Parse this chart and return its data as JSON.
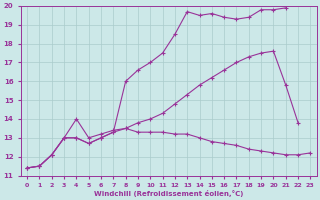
{
  "xlabel": "Windchill (Refroidissement éolien,°C)",
  "bg_color": "#cce8e8",
  "line_color": "#993399",
  "grid_color": "#aacccc",
  "xlim": [
    -0.5,
    23.5
  ],
  "ylim": [
    11,
    20
  ],
  "xticks": [
    0,
    1,
    2,
    3,
    4,
    5,
    6,
    7,
    8,
    9,
    10,
    11,
    12,
    13,
    14,
    15,
    16,
    17,
    18,
    19,
    20,
    21,
    22,
    23
  ],
  "yticks": [
    11,
    12,
    13,
    14,
    15,
    16,
    17,
    18,
    19,
    20
  ],
  "lines": [
    {
      "comment": "top line: starts low, rises sharply around x=8, stays high ~19.5-19.8",
      "x": [
        0,
        1,
        2,
        3,
        4,
        5,
        6,
        7,
        8,
        9,
        10,
        11,
        12,
        13,
        14,
        15,
        16,
        17,
        18,
        19,
        20,
        21
      ],
      "y": [
        11.4,
        11.5,
        12.1,
        13.0,
        13.0,
        12.7,
        13.0,
        13.3,
        16.0,
        16.6,
        17.0,
        17.5,
        18.5,
        19.7,
        19.5,
        19.6,
        19.4,
        19.3,
        19.4,
        19.8,
        19.8,
        19.9
      ]
    },
    {
      "comment": "bottom flat line: starts low, peaks ~14 at x=4, slowly declines to ~12.2",
      "x": [
        0,
        1,
        2,
        3,
        4,
        5,
        6,
        7,
        8,
        9,
        10,
        11,
        12,
        13,
        14,
        15,
        16,
        17,
        18,
        19,
        20,
        21,
        22,
        23
      ],
      "y": [
        11.4,
        11.5,
        12.1,
        13.0,
        14.0,
        13.0,
        13.2,
        13.4,
        13.5,
        13.3,
        13.3,
        13.3,
        13.2,
        13.2,
        13.0,
        12.8,
        12.7,
        12.6,
        12.4,
        12.3,
        12.2,
        12.1,
        12.1,
        12.2
      ]
    },
    {
      "comment": "triangle line: starts low, rises diagonally to peak ~17.6 at x=20, drops to ~13.8 at x=22",
      "x": [
        0,
        1,
        2,
        3,
        4,
        5,
        6,
        7,
        8,
        9,
        10,
        11,
        12,
        13,
        14,
        15,
        16,
        17,
        18,
        19,
        20,
        21,
        22
      ],
      "y": [
        11.4,
        11.5,
        12.1,
        13.0,
        13.0,
        12.7,
        13.0,
        13.3,
        13.5,
        13.8,
        14.0,
        14.3,
        14.8,
        15.3,
        15.8,
        16.2,
        16.6,
        17.0,
        17.3,
        17.5,
        17.6,
        15.8,
        13.8
      ]
    }
  ]
}
